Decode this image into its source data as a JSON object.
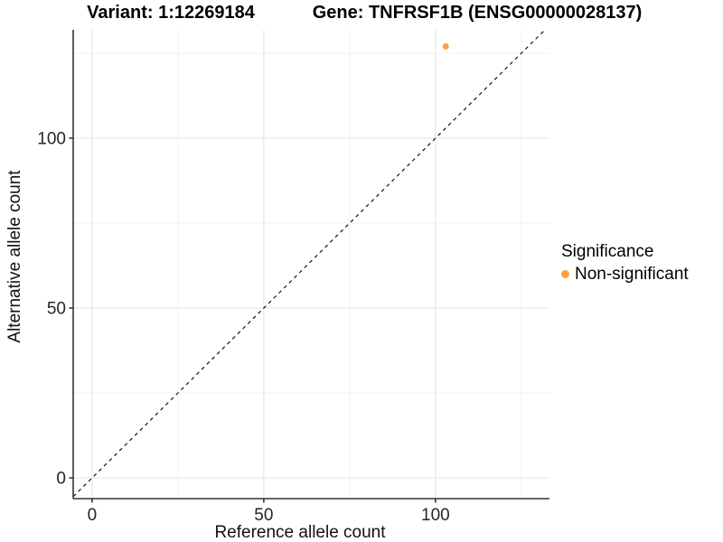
{
  "chart_data": {
    "type": "scatter",
    "titles": [
      "Variant: 1:12269184",
      "Gene: TNFRSF1B (ENSG00000028137)"
    ],
    "xlabel": "Reference allele count",
    "ylabel": "Alternative allele count",
    "xlim": [
      -5.5,
      133.2
    ],
    "ylim": [
      -6.1,
      131.9
    ],
    "x_ticks": {
      "major": [
        0,
        50,
        100
      ],
      "minor": [
        25,
        75,
        125
      ]
    },
    "y_ticks": {
      "major": [
        0,
        50,
        100
      ],
      "minor": [
        25,
        75,
        125
      ]
    },
    "grid": "major+minor",
    "reference_line": {
      "equation": "y = x",
      "style": "dashed",
      "color": "#111111"
    },
    "legend": {
      "title": "Significance",
      "position": "right",
      "items": [
        {
          "label": "Non-significant",
          "color": "#FAA43A"
        }
      ]
    },
    "series": [
      {
        "name": "Non-significant",
        "color": "#FAA43A",
        "points": [
          {
            "x": 103,
            "y": 127
          }
        ]
      }
    ]
  },
  "colors": {
    "grid_major": "#E3E3E3",
    "grid_minor": "#F0F0F0",
    "axis_line": "#333333",
    "tick_label": "#262626"
  }
}
